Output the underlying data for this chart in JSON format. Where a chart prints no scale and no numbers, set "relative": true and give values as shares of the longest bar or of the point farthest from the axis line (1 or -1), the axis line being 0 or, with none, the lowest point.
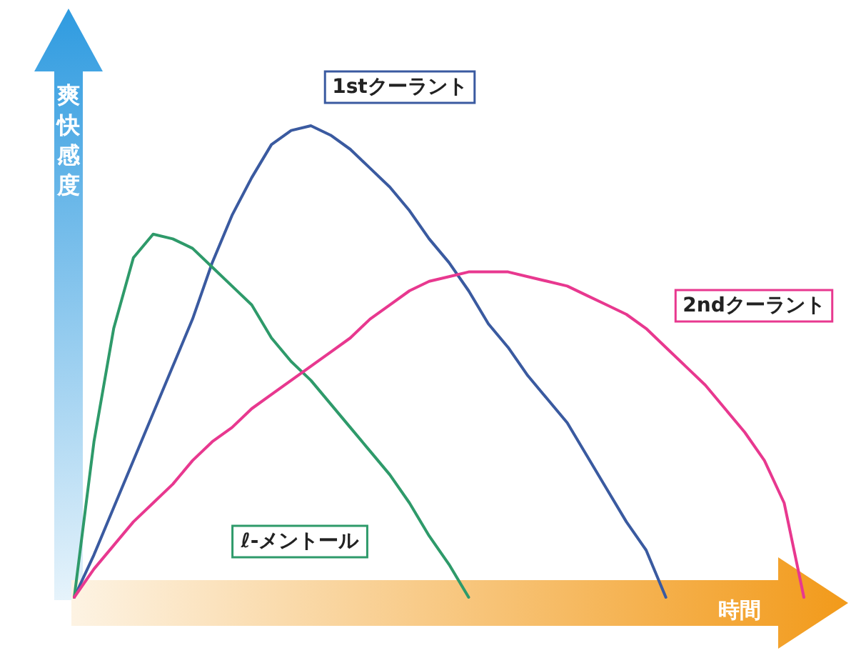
{
  "chart_data": {
    "type": "line",
    "relative": true,
    "xlabel": "時間",
    "ylabel": "爽快感度",
    "marker": "none",
    "line_style": "solid",
    "categories": [
      null,
      null,
      null,
      null,
      null,
      null,
      null,
      null,
      null,
      null,
      null,
      null,
      null,
      null,
      null,
      null,
      null,
      null,
      null,
      null,
      null,
      null,
      null,
      null,
      null,
      null,
      null,
      null,
      null,
      null,
      null,
      null,
      null,
      null,
      null,
      null,
      null,
      null
    ],
    "series": [
      {
        "name": "1stクーラント",
        "color": "#3a5aa0",
        "values": [
          0,
          0.09,
          0.19,
          0.29,
          0.39,
          0.49,
          0.59,
          0.71,
          0.81,
          0.89,
          0.96,
          0.99,
          1,
          0.98,
          0.95,
          0.91,
          0.87,
          0.82,
          0.76,
          0.71,
          0.65,
          0.58,
          0.53,
          0.47,
          0.42,
          0.37,
          0.3,
          0.23,
          0.16,
          0.1,
          0,
          null,
          null,
          null,
          null,
          null,
          null,
          null
        ]
      },
      {
        "name": "ℓ-メントール",
        "color": "#2e9a6a",
        "values": [
          0,
          0.33,
          0.57,
          0.72,
          0.77,
          0.76,
          0.74,
          0.7,
          0.66,
          0.62,
          0.55,
          0.5,
          0.46,
          0.41,
          0.36,
          0.31,
          0.26,
          0.2,
          0.13,
          0.07,
          0,
          null,
          null,
          null,
          null,
          null,
          null,
          null,
          null,
          null,
          null,
          null,
          null,
          null,
          null,
          null,
          null,
          null
        ]
      },
      {
        "name": "2ndクーラント",
        "color": "#e8388f",
        "values": [
          0,
          0.06,
          0.11,
          0.16,
          0.2,
          0.24,
          0.29,
          0.33,
          0.36,
          0.4,
          0.43,
          0.46,
          0.49,
          0.52,
          0.55,
          0.59,
          0.62,
          0.65,
          0.67,
          0.68,
          0.69,
          0.69,
          0.69,
          0.68,
          0.67,
          0.66,
          0.64,
          0.62,
          0.6,
          0.57,
          0.53,
          0.49,
          0.45,
          0.4,
          0.35,
          0.29,
          0.2,
          0
        ]
      }
    ]
  }
}
